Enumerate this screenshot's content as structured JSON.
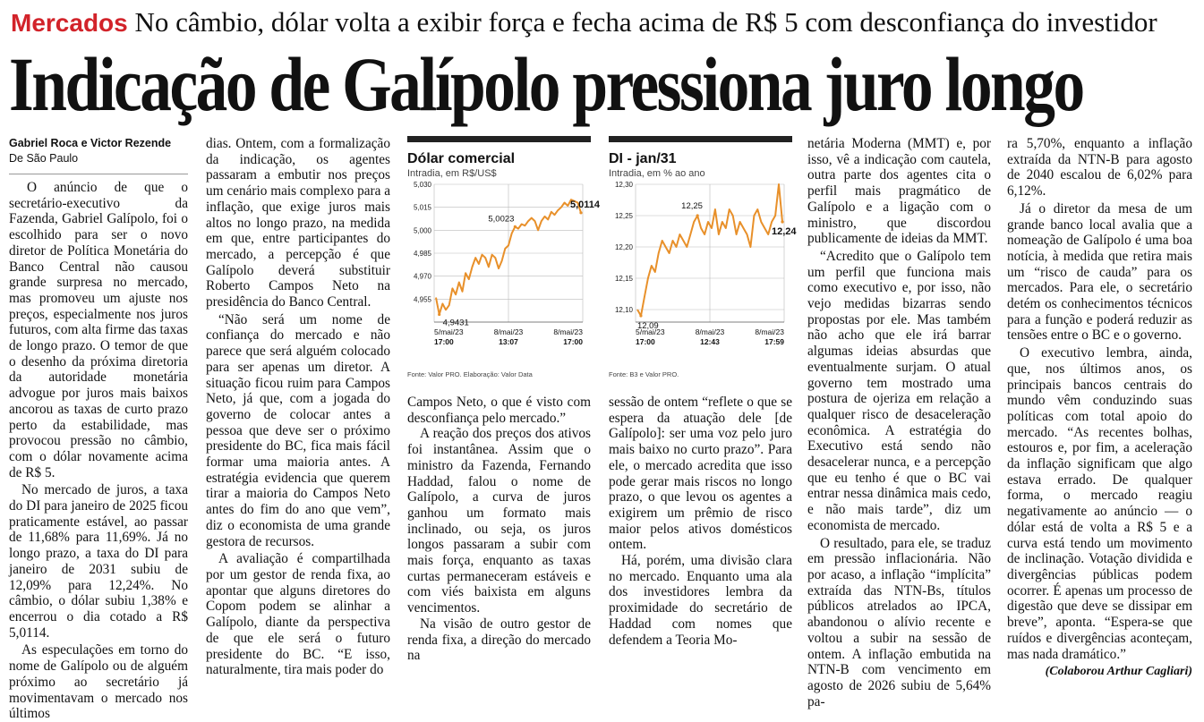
{
  "header": {
    "section": "Mercados",
    "subheadline": "No câmbio, dólar volta a exibir força e fecha acima de R$ 5 com desconfiança do investidor",
    "headline": "Indicação de Galípolo pressiona juro longo"
  },
  "byline": {
    "authors": "Gabriel Roca e Victor Rezende",
    "location": "De São Paulo"
  },
  "columns": {
    "col1": [
      "O anúncio de que o secretário-executivo da Fazenda, Gabriel Galípolo, foi o escolhido para ser o novo diretor de Política Monetária do Banco Central não causou grande surpresa no mercado, mas promoveu um ajuste nos preços, especialmente nos juros futuros, com alta firme das taxas de longo prazo. O temor de que o desenho da próxima diretoria da autoridade monetária advogue por juros mais baixos ancorou as taxas de curto prazo perto da estabilidade, mas provocou pressão no câmbio, com o dólar novamente acima de R$ 5.",
      "No mercado de juros, a taxa do DI para janeiro de 2025 ficou praticamente estável, ao passar de 11,68% para 11,69%. Já no longo prazo, a taxa do DI para janeiro de 2031 subiu de 12,09% para 12,24%. No câmbio, o dólar subiu 1,38% e encerrou o dia cotado a R$ 5,0114.",
      "As especulações em torno do nome de Galípolo ou de alguém próximo ao secretário já movimentavam o mercado nos últimos"
    ],
    "col2": [
      "dias. Ontem, com a formalização da indicação, os agentes passaram a embutir nos preços um cenário mais complexo para a inflação, que exige juros mais altos no longo prazo, na medida em que, entre participantes do mercado, a percepção é que Galípolo deverá substituir Roberto Campos Neto na presidência do Banco Central.",
      "“Não será um nome de confiança do mercado e não parece que será alguém colocado para ser apenas um diretor. A situação ficou ruim para Campos Neto, já que, com a jogada do governo de colocar antes a pessoa que deve ser o próximo presidente do BC, fica mais fácil formar uma maioria antes. A estratégia evidencia que querem tirar a maioria do Campos Neto antes do fim do ano que vem”, diz o economista de uma grande gestora de recursos.",
      "A avaliação é compartilhada por um gestor de renda fixa, ao apontar que alguns diretores do Copom podem se alinhar a Galípolo, diante da perspectiva de que ele será o futuro presidente do BC. “E isso, naturalmente, tira mais poder do"
    ],
    "col3": [
      "Campos Neto, o que é visto com desconfiança pelo mercado.”",
      "A reação dos preços dos ativos foi instantânea. Assim que o ministro da Fazenda, Fernando Haddad, falou o nome de Galípolo, a curva de juros ganhou um formato mais inclinado, ou seja, os juros longos passaram a subir com mais força, enquanto as taxas curtas permaneceram estáveis e com viés baixista em alguns vencimentos.",
      "Na visão de outro gestor de renda fixa, a direção do mercado na"
    ],
    "col4": [
      "sessão de ontem “reflete o que se espera da atuação dele [de Galípolo]: ser uma voz pelo juro mais baixo no curto prazo”. Para ele, o mercado acredita que isso pode gerar mais riscos no longo prazo, o que levou os agentes a exigirem um prêmio de risco maior pelos ativos domésticos ontem.",
      "Há, porém, uma divisão clara no mercado. Enquanto uma ala dos investidores lembra da proximidade do secretário de Haddad com nomes que defendem a Teoria Mo-"
    ],
    "col5": [
      "netária Moderna (MMT) e, por isso, vê a indicação com cautela, outra parte dos agentes cita o perfil mais pragmático de Galípolo e a ligação com o ministro, que discordou publicamente de ideias da MMT.",
      "“Acredito que o Galípolo tem um perfil que funciona mais como executivo e, por isso, não vejo medidas bizarras sendo propostas por ele. Mas também não acho que ele irá barrar algumas ideias absurdas que eventualmente surjam. O atual governo tem mostrado uma postura de ojeriza em relação a qualquer risco de desaceleração econômica. A estratégia do Executivo está sendo não desacelerar nunca, e a percepção que eu tenho é que o BC vai entrar nessa dinâmica mais cedo, e não mais tarde”, diz um economista de mercado.",
      "O resultado, para ele, se traduz em pressão inflacionária. Não por acaso, a inflação “implícita” extraída das NTN-Bs, títulos públicos atrelados ao IPCA, abandonou o alívio recente e voltou a subir na sessão de ontem. A inflação embutida na NTN-B com vencimento em agosto de 2026 subiu de 5,64% pa-"
    ],
    "col6": [
      "ra 5,70%, enquanto a inflação extraída da NTN-B para agosto de 2040 escalou de 6,02% para 6,12%.",
      "Já o diretor da mesa de um grande banco local avalia que a nomeação de Galípolo é uma boa notícia, à medida que retira mais um “risco de cauda” para os mercados. Para ele, o secretário detém os conhecimentos técnicos para a função e poderá reduzir as tensões entre o BC e o governo.",
      "O executivo lembra, ainda, que, nos últimos anos, os principais bancos centrais do mundo vêm conduzindo suas políticas com total apoio do mercado. “As recentes bolhas, estouros e, por fim, a aceleração da inflação significam que algo estava errado. De qualquer forma, o mercado reagiu negativamente ao anúncio — o dólar está de volta a R$ 5 e a curva está tendo um movimento de inclinação. Votação dividida e divergências públicas podem ocorrer. É apenas um processo de digestão que deve se dissipar em breve”, aponta. “Espera-se que ruídos e divergências aconteçam, mas nada dramático.”"
    ],
    "credit": "(Colaborou Arthur Cagliari)"
  },
  "chart_data": [
    {
      "type": "line",
      "title": "Dólar comercial",
      "subtitle": "Intradia, em R$/US$",
      "source": "Fonte: Valor PRO. Elaboração: Valor Data",
      "yticks": [
        "5,030",
        "5,015",
        "5,000",
        "4,985",
        "4,970",
        "4,955"
      ],
      "ylim": [
        4.94,
        5.03
      ],
      "xticks": [
        [
          "5/mai/23",
          "17:00"
        ],
        [
          "8/mai/23",
          "13:07"
        ],
        [
          "8/mai/23",
          "17:00"
        ]
      ],
      "annotations": [
        "5,0114",
        "5,0023",
        "4,9431"
      ],
      "values": [
        4.956,
        4.945,
        4.952,
        4.948,
        4.951,
        4.962,
        4.958,
        4.966,
        4.96,
        4.972,
        4.968,
        4.976,
        4.982,
        4.978,
        4.984,
        4.982,
        4.976,
        4.984,
        4.982,
        4.975,
        4.98,
        4.988,
        4.99,
        4.998,
        5.0023,
        5.001,
        5.004,
        5.003,
        5.006,
        5.008,
        5.006,
        5.0,
        5.006,
        5.009,
        5.007,
        5.012,
        5.01,
        5.013,
        5.015,
        5.018,
        5.016,
        5.02,
        5.019,
        5.018,
        5.0114
      ]
    },
    {
      "type": "line",
      "title": "DI - jan/31",
      "subtitle": "Intradia, em % ao ano",
      "source": "Fonte: B3 e Valor PRO.",
      "yticks": [
        "12,30",
        "12,25",
        "12,20",
        "12,15",
        "12,10"
      ],
      "ylim": [
        12.08,
        12.3
      ],
      "xticks": [
        [
          "5/mai/23",
          "17:00"
        ],
        [
          "8/mai/23",
          "12:43"
        ],
        [
          "8/mai/23",
          "17:59"
        ]
      ],
      "annotations": [
        "12,25",
        "12,24",
        "12,09"
      ],
      "values": [
        12.1,
        12.09,
        12.12,
        12.15,
        12.17,
        12.16,
        12.19,
        12.21,
        12.2,
        12.19,
        12.21,
        12.2,
        12.22,
        12.21,
        12.2,
        12.22,
        12.24,
        12.25,
        12.23,
        12.22,
        12.24,
        12.23,
        12.26,
        12.22,
        12.24,
        12.23,
        12.26,
        12.25,
        12.22,
        12.24,
        12.23,
        12.22,
        12.2,
        12.25,
        12.26,
        12.24,
        12.23,
        12.22,
        12.24,
        12.25,
        12.3,
        12.24
      ]
    }
  ]
}
